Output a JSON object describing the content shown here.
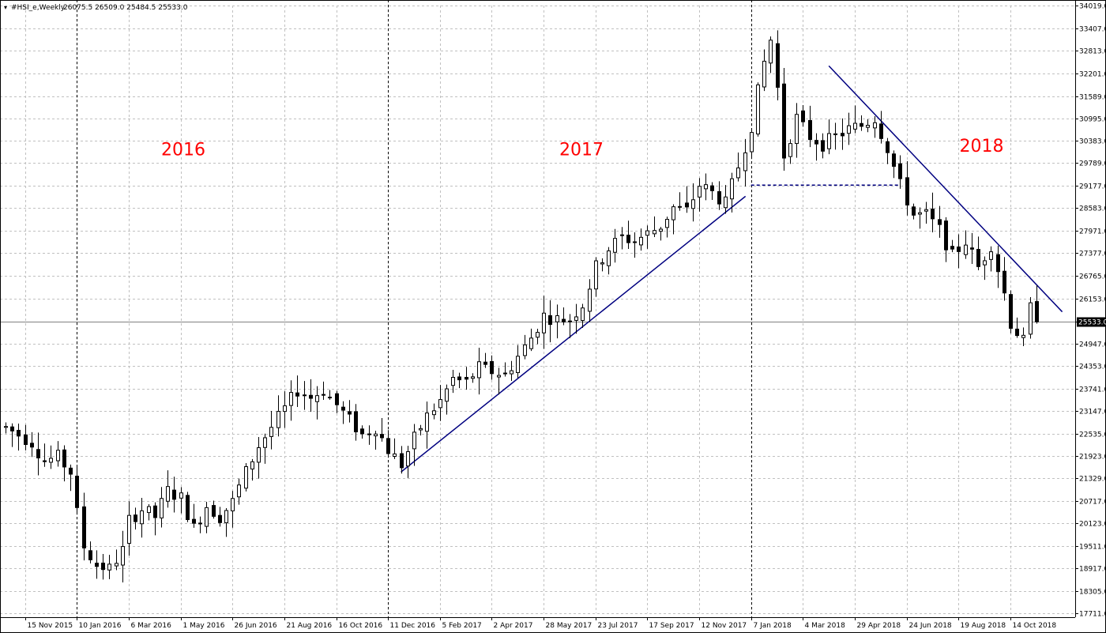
{
  "chart_header": {
    "symbol": "#HSI_e,Weekly",
    "ohlc": "26075.5 26509.0 25484.5 25533.0"
  },
  "price_tag": "25533.0",
  "annotations": [
    {
      "text": "2016",
      "x": "2016-04-10",
      "y": 30000
    },
    {
      "text": "2017",
      "x": "2017-06-14",
      "y": 30000
    },
    {
      "text": "2018",
      "x": "2018-08-20",
      "y": 30100
    }
  ],
  "colors": {
    "background": "#ffffff",
    "candle": "#000000",
    "grid": "#c0c0c0",
    "trendline": "#000080",
    "annotation_text": "#ff0000",
    "price_tag_bg": "#000000"
  },
  "chart_data": {
    "type": "candlestick",
    "title": "#HSI_e,Weekly",
    "timeframe": "Weekly",
    "grid": true,
    "y_axis_side": "right",
    "ylim": [
      17711,
      34019
    ],
    "xlim": [
      "2015-10-19",
      "2018-12-23"
    ],
    "y_ticks": [
      "34019.0",
      "33407.0",
      "32813.0",
      "32201.0",
      "31589.0",
      "30995.0",
      "30383.0",
      "29789.0",
      "29177.0",
      "28583.0",
      "27971.0",
      "27377.0",
      "26765.0",
      "26153.0",
      "25533.0",
      "24947.0",
      "24353.0",
      "23741.0",
      "23147.0",
      "22535.0",
      "21923.0",
      "21329.0",
      "20717.0",
      "20123.0",
      "19511.0",
      "18917.0",
      "18305.0",
      "17711.0"
    ],
    "x_ticks": [
      {
        "label": "15 Nov 2015",
        "date": "2015-11-15"
      },
      {
        "label": "10 Jan 2016",
        "date": "2016-01-10"
      },
      {
        "label": "6 Mar 2016",
        "date": "2016-03-06"
      },
      {
        "label": "1 May 2016",
        "date": "2016-05-01"
      },
      {
        "label": "26 Jun 2016",
        "date": "2016-06-26"
      },
      {
        "label": "21 Aug 2016",
        "date": "2016-08-21"
      },
      {
        "label": "16 Oct 2016",
        "date": "2016-10-16"
      },
      {
        "label": "11 Dec 2016",
        "date": "2016-12-11"
      },
      {
        "label": "5 Feb 2017",
        "date": "2017-02-05"
      },
      {
        "label": "2 Apr 2017",
        "date": "2017-04-02"
      },
      {
        "label": "28 May 2017",
        "date": "2017-05-28"
      },
      {
        "label": "23 Jul 2017",
        "date": "2017-07-23"
      },
      {
        "label": "17 Sep 2017",
        "date": "2017-09-17"
      },
      {
        "label": "12 Nov 2017",
        "date": "2017-11-12"
      },
      {
        "label": "7 Jan 2018",
        "date": "2018-01-07"
      },
      {
        "label": "4 Mar 2018",
        "date": "2018-03-04"
      },
      {
        "label": "29 Apr 2018",
        "date": "2018-04-29"
      },
      {
        "label": "24 Jun 2018",
        "date": "2018-06-24"
      },
      {
        "label": "19 Aug 2018",
        "date": "2018-08-19"
      },
      {
        "label": "14 Oct 2018",
        "date": "2018-10-14"
      }
    ],
    "major_vlines": [
      "2016-01-10",
      "2016-12-11",
      "2018-01-07",
      "2018-12-23"
    ],
    "current_price": 25533.0,
    "close_path": [
      [
        "2015-10-25",
        22700
      ],
      [
        "2015-11-08",
        22500
      ],
      [
        "2015-11-22",
        22300
      ],
      [
        "2015-12-06",
        21800
      ],
      [
        "2015-12-20",
        21900
      ],
      [
        "2016-01-03",
        21500
      ],
      [
        "2016-01-10",
        20400
      ],
      [
        "2016-01-17",
        19500
      ],
      [
        "2016-01-31",
        19000
      ],
      [
        "2016-02-14",
        18900
      ],
      [
        "2016-02-28",
        19400
      ],
      [
        "2016-03-06",
        20200
      ],
      [
        "2016-03-20",
        20500
      ],
      [
        "2016-04-03",
        20300
      ],
      [
        "2016-04-17",
        21000
      ],
      [
        "2016-05-01",
        20800
      ],
      [
        "2016-05-15",
        20000
      ],
      [
        "2016-05-29",
        20600
      ],
      [
        "2016-06-12",
        20300
      ],
      [
        "2016-06-26",
        20700
      ],
      [
        "2016-07-10",
        21500
      ],
      [
        "2016-07-24",
        22200
      ],
      [
        "2016-08-07",
        22700
      ],
      [
        "2016-08-21",
        23200
      ],
      [
        "2016-09-04",
        23700
      ],
      [
        "2016-09-18",
        23500
      ],
      [
        "2016-10-02",
        23700
      ],
      [
        "2016-10-16",
        23300
      ],
      [
        "2016-10-30",
        22900
      ],
      [
        "2016-11-13",
        22500
      ],
      [
        "2016-11-27",
        22700
      ],
      [
        "2016-12-11",
        22100
      ],
      [
        "2016-12-25",
        21700
      ],
      [
        "2017-01-08",
        22400
      ],
      [
        "2017-01-22",
        23000
      ],
      [
        "2017-02-05",
        23400
      ],
      [
        "2017-02-19",
        24000
      ],
      [
        "2017-03-05",
        23900
      ],
      [
        "2017-03-19",
        24300
      ],
      [
        "2017-04-02",
        24200
      ],
      [
        "2017-04-16",
        24100
      ],
      [
        "2017-04-30",
        24600
      ],
      [
        "2017-05-14",
        25100
      ],
      [
        "2017-05-28",
        25700
      ],
      [
        "2017-06-11",
        25600
      ],
      [
        "2017-06-25",
        25600
      ],
      [
        "2017-07-09",
        26000
      ],
      [
        "2017-07-23",
        27000
      ],
      [
        "2017-08-06",
        27500
      ],
      [
        "2017-08-20",
        27800
      ],
      [
        "2017-09-03",
        27700
      ],
      [
        "2017-09-17",
        27900
      ],
      [
        "2017-10-01",
        28100
      ],
      [
        "2017-10-15",
        28600
      ],
      [
        "2017-10-29",
        28500
      ],
      [
        "2017-11-12",
        29200
      ],
      [
        "2017-11-26",
        29000
      ],
      [
        "2017-12-10",
        28700
      ],
      [
        "2017-12-24",
        29700
      ],
      [
        "2018-01-07",
        30800
      ],
      [
        "2018-01-14",
        31700
      ],
      [
        "2018-01-21",
        32500
      ],
      [
        "2018-01-28",
        33100
      ],
      [
        "2018-02-04",
        31800
      ],
      [
        "2018-02-11",
        30000
      ],
      [
        "2018-02-25",
        31000
      ],
      [
        "2018-03-11",
        30500
      ],
      [
        "2018-03-25",
        30300
      ],
      [
        "2018-04-08",
        30500
      ],
      [
        "2018-04-22",
        30700
      ],
      [
        "2018-05-06",
        30800
      ],
      [
        "2018-05-20",
        31000
      ],
      [
        "2018-06-03",
        30200
      ],
      [
        "2018-06-17",
        29200
      ],
      [
        "2018-07-01",
        28400
      ],
      [
        "2018-07-15",
        28400
      ],
      [
        "2018-07-29",
        28000
      ],
      [
        "2018-08-12",
        27300
      ],
      [
        "2018-08-26",
        27700
      ],
      [
        "2018-09-09",
        27000
      ],
      [
        "2018-09-23",
        27600
      ],
      [
        "2018-10-07",
        26300
      ],
      [
        "2018-10-14",
        25500
      ],
      [
        "2018-10-28",
        25000
      ],
      [
        "2018-11-04",
        25900
      ],
      [
        "2018-11-11",
        25533
      ]
    ],
    "trendlines": [
      {
        "style": "solid",
        "from": [
          "2016-12-25",
          21500
        ],
        "to": [
          "2018-01-01",
          28900
        ]
      },
      {
        "style": "dashed",
        "from": [
          "2018-01-07",
          29200
        ],
        "to": [
          "2018-06-17",
          29200
        ]
      },
      {
        "style": "solid",
        "from": [
          "2018-04-01",
          32400
        ],
        "to": [
          "2018-12-09",
          25800
        ]
      }
    ]
  }
}
